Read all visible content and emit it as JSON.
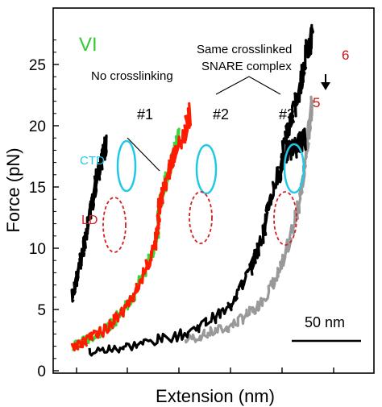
{
  "panel_label": "VI",
  "colors": {
    "panel_label": "#33cc33",
    "ctd": "#22c8e8",
    "ld": "#d42020",
    "red_trace": "#ff1a00",
    "green_trace": "#39d639",
    "gray_trace": "#999999",
    "black_trace": "#000000",
    "step_label": "#cc1111"
  },
  "annotations": {
    "no_crosslinking": "No crosslinking",
    "same_complex_line1": "Same crosslinked",
    "same_complex_line2": "SNARE complex",
    "ctd": "CTD",
    "ld": "LD",
    "pull1": "#1",
    "pull2": "#2",
    "pull3": "#3",
    "step5": "5",
    "step6": "6",
    "scale_bar": "50 nm"
  },
  "chart_data": {
    "type": "line",
    "title": "",
    "xlabel": "Extension (nm)",
    "ylabel": "Force (pN)",
    "ylim": [
      0,
      28
    ],
    "yticks": [
      0,
      5,
      10,
      15,
      20,
      25
    ],
    "xticks_labeled": false,
    "x_units": "nm (relative, from scale bar)",
    "grid": false,
    "scale_bar": {
      "length": 50,
      "unit": "nm",
      "label": "50 nm"
    },
    "series": [
      {
        "color": "black",
        "x": [
          0,
          4,
          8,
          12,
          16,
          20,
          24
        ],
        "y": [
          6,
          8,
          10,
          12.5,
          15,
          17,
          18.5
        ]
      },
      {
        "color": "green",
        "x": [
          0,
          10,
          25,
          40,
          55,
          60,
          62,
          70,
          75
        ],
        "y": [
          2,
          2.5,
          3.5,
          5.5,
          9,
          11,
          14,
          17,
          19
        ]
      },
      {
        "color": "red",
        "x": [
          0,
          10,
          25,
          40,
          55,
          60,
          62,
          70,
          80,
          83
        ],
        "y": [
          2,
          2.5,
          3.5,
          5.5,
          9,
          11,
          14,
          17,
          19.5,
          21
        ]
      },
      {
        "color": "black",
        "x": [
          12,
          40,
          80,
          110,
          125,
          135,
          140,
          150,
          160,
          165
        ],
        "y": [
          1.5,
          2,
          3,
          5,
          8,
          11,
          14,
          17.5,
          18.5,
          19
        ]
      },
      {
        "color": "black",
        "x": [
          145,
          152,
          160,
          166,
          170
        ],
        "y": [
          15,
          19.5,
          22.5,
          26,
          27.5
        ]
      },
      {
        "color": "gray",
        "x": [
          80,
          110,
          130,
          145,
          155,
          163,
          168,
          170
        ],
        "y": [
          2.5,
          3.5,
          5,
          7.5,
          11,
          15,
          20,
          22
        ]
      }
    ]
  }
}
